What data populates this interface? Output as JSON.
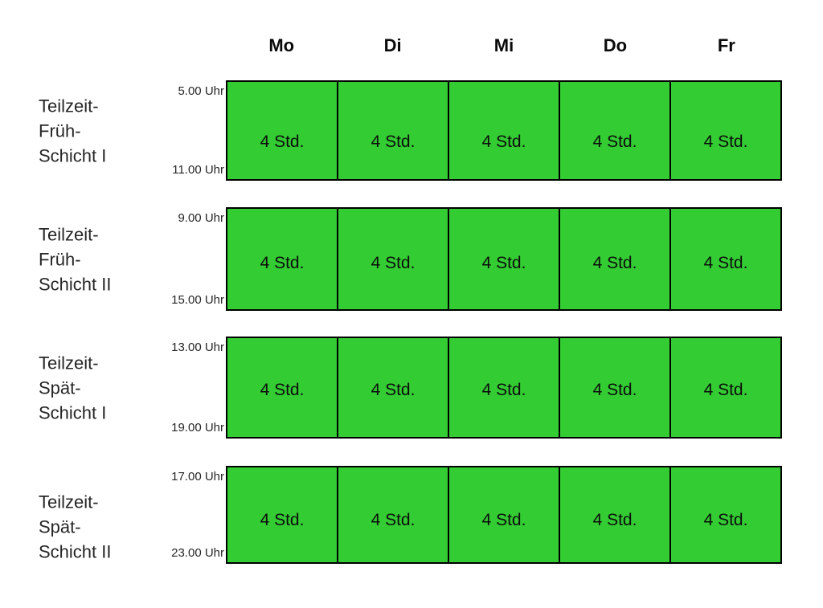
{
  "palette": {
    "cell_fill": "#33cc33",
    "cell_border": "#000000",
    "text": "#262626",
    "background": "#ffffff"
  },
  "chart_data": {
    "type": "table",
    "title": "",
    "columns": [
      "Mo",
      "Di",
      "Mi",
      "Do",
      "Fr"
    ],
    "shifts": [
      {
        "name": "Teilzeit-Früh-Schicht I",
        "name_lines": [
          "Teilzeit-",
          "Früh-",
          "Schicht I"
        ],
        "start_label": "5.00 Uhr",
        "end_label": "11.00 Uhr",
        "time_range_hours": [
          5,
          11
        ],
        "hours_per_day": 4,
        "cells": [
          "4 Std.",
          "4 Std.",
          "4 Std.",
          "4 Std.",
          "4 Std."
        ]
      },
      {
        "name": "Teilzeit-Früh-Schicht II",
        "name_lines": [
          "Teilzeit-",
          "Früh-",
          "Schicht II"
        ],
        "start_label": "9.00 Uhr",
        "end_label": "15.00 Uhr",
        "time_range_hours": [
          9,
          15
        ],
        "hours_per_day": 4,
        "cells": [
          "4 Std.",
          "4 Std.",
          "4 Std.",
          "4 Std.",
          "4 Std."
        ]
      },
      {
        "name": "Teilzeit-Spät-Schicht I",
        "name_lines": [
          "Teilzeit-",
          "Spät-",
          "Schicht I"
        ],
        "start_label": "13.00 Uhr",
        "end_label": "19.00 Uhr",
        "time_range_hours": [
          13,
          19
        ],
        "hours_per_day": 4,
        "cells": [
          "4 Std.",
          "4 Std.",
          "4 Std.",
          "4 Std.",
          "4 Std."
        ]
      },
      {
        "name": "Teilzeit-Spät-Schicht II",
        "name_lines": [
          "Teilzeit-",
          "Spät-",
          "Schicht II"
        ],
        "start_label": "17.00 Uhr",
        "end_label": "23.00 Uhr",
        "time_range_hours": [
          17,
          23
        ],
        "hours_per_day": 4,
        "cells": [
          "4 Std.",
          "4 Std.",
          "4 Std.",
          "4 Std.",
          "4 Std."
        ]
      }
    ]
  }
}
